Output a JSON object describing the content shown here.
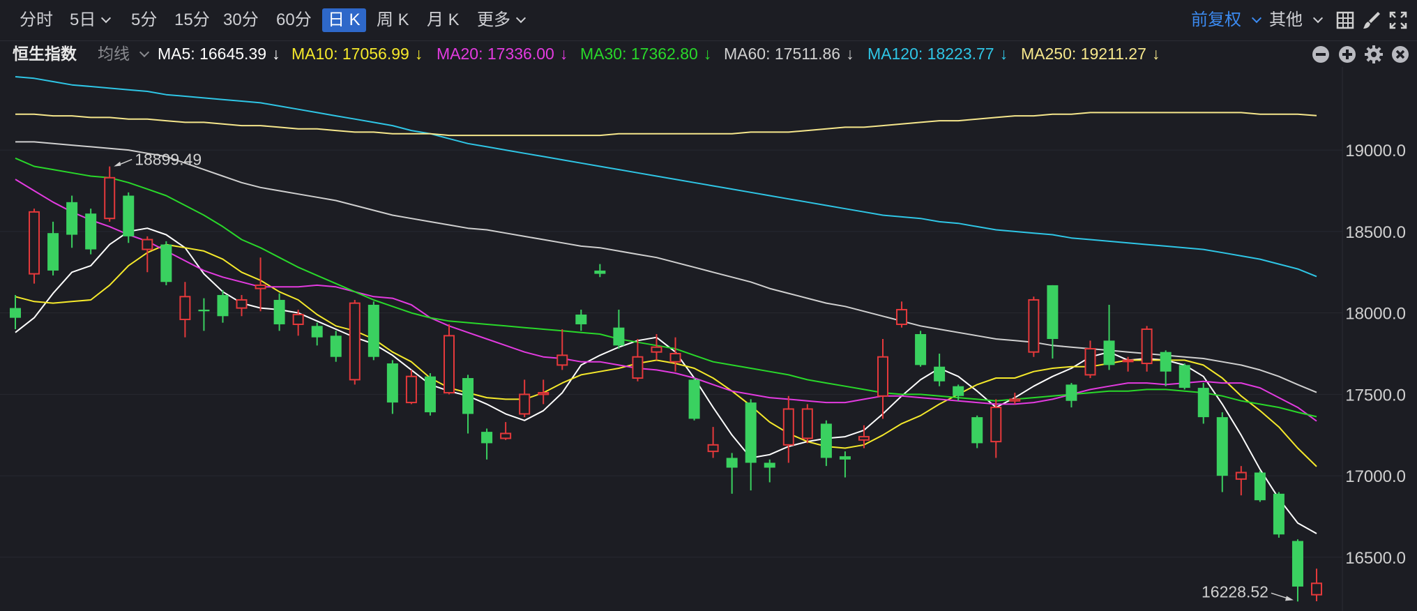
{
  "toolbar": {
    "tabs": [
      {
        "label": "分时",
        "active": false,
        "dropdown": false
      },
      {
        "label": "5日",
        "active": false,
        "dropdown": true
      },
      {
        "label": "5分",
        "active": false,
        "dropdown": false
      },
      {
        "label": "15分",
        "active": false,
        "dropdown": false
      },
      {
        "label": "30分",
        "active": false,
        "dropdown": false
      },
      {
        "label": "60分",
        "active": false,
        "dropdown": false
      },
      {
        "label": "日 K",
        "active": true,
        "dropdown": false
      },
      {
        "label": "周 K",
        "active": false,
        "dropdown": false
      },
      {
        "label": "月 K",
        "active": false,
        "dropdown": false
      },
      {
        "label": "更多",
        "active": false,
        "dropdown": true
      }
    ],
    "adjust_label": "前复权",
    "other_label": "其他",
    "icons": [
      "grid-icon",
      "brush-icon",
      "expand-icon"
    ]
  },
  "indicator_bar": {
    "symbol": "恒生指数",
    "mode_label": "均线",
    "ma": [
      {
        "label": "MA5: 16645.39",
        "color": "#ffffff",
        "arrow": "↓"
      },
      {
        "label": "MA10: 17056.99",
        "color": "#f5e92b",
        "arrow": "↓"
      },
      {
        "label": "MA20: 17336.00",
        "color": "#e33be0",
        "arrow": "↓"
      },
      {
        "label": "MA30: 17362.80",
        "color": "#29d82a",
        "arrow": "↓"
      },
      {
        "label": "MA60: 17511.86",
        "color": "#d0d0d0",
        "arrow": "↓"
      },
      {
        "label": "MA120: 18223.77",
        "color": "#2fc6e6",
        "arrow": "↓"
      },
      {
        "label": "MA250: 19211.27",
        "color": "#f6e78c",
        "arrow": "↓"
      }
    ],
    "controls": [
      "minus-circle-icon",
      "plus-circle-icon",
      "gear-icon",
      "close-circle-icon"
    ]
  },
  "chart_data": {
    "type": "candlestick",
    "y_ticks": [
      "19000.0",
      "18500.0",
      "18000.0",
      "17500.0",
      "17000.0",
      "16500.0"
    ],
    "y_tick_values": [
      19000,
      18500,
      18000,
      17500,
      17000,
      16500
    ],
    "ylim": [
      16170,
      19510
    ],
    "high_label": "18899.49",
    "low_label": "16228.52",
    "up_color": "#e5393b",
    "down_color": "#3ad160",
    "candles": [
      [
        18030,
        17970,
        18110,
        17900
      ],
      [
        18240,
        18620,
        18640,
        18180
      ],
      [
        18490,
        18260,
        18560,
        18230
      ],
      [
        18680,
        18480,
        18720,
        18400
      ],
      [
        18610,
        18390,
        18640,
        18360
      ],
      [
        18580,
        18830,
        18899.49,
        18560
      ],
      [
        18720,
        18470,
        18740,
        18430
      ],
      [
        18390,
        18450,
        18470,
        18250
      ],
      [
        18420,
        18190,
        18440,
        18170
      ],
      [
        17960,
        18100,
        18190,
        17850
      ],
      [
        18020,
        18010,
        18090,
        17890
      ],
      [
        18110,
        17980,
        18140,
        17940
      ],
      [
        18030,
        18080,
        18110,
        17980
      ],
      [
        18150,
        18170,
        18340,
        18010
      ],
      [
        18080,
        17930,
        18120,
        17890
      ],
      [
        17930,
        17990,
        18020,
        17860
      ],
      [
        17920,
        17850,
        17940,
        17800
      ],
      [
        17860,
        17730,
        17890,
        17700
      ],
      [
        17590,
        18060,
        18080,
        17560
      ],
      [
        18050,
        17730,
        18070,
        17710
      ],
      [
        17690,
        17450,
        17710,
        17380
      ],
      [
        17450,
        17610,
        17650,
        17440
      ],
      [
        17610,
        17390,
        17630,
        17370
      ],
      [
        17510,
        17860,
        17930,
        17500
      ],
      [
        17600,
        17380,
        17620,
        17260
      ],
      [
        17270,
        17200,
        17290,
        17100
      ],
      [
        17230,
        17260,
        17330,
        17220
      ],
      [
        17380,
        17500,
        17590,
        17360
      ],
      [
        17500,
        17510,
        17590,
        17440
      ],
      [
        17680,
        17740,
        17900,
        17650
      ],
      [
        17990,
        17930,
        18020,
        17890
      ],
      [
        18260,
        18240,
        18300,
        18220
      ],
      [
        17910,
        17800,
        18020,
        17780
      ],
      [
        17600,
        17730,
        17840,
        17580
      ],
      [
        17760,
        17790,
        17870,
        17710
      ],
      [
        17700,
        17750,
        17850,
        17640
      ],
      [
        17590,
        17350,
        17600,
        17340
      ],
      [
        17150,
        17190,
        17300,
        17110
      ],
      [
        17110,
        17050,
        17140,
        16890
      ],
      [
        17450,
        17080,
        17470,
        16910
      ],
      [
        17080,
        17050,
        17100,
        16960
      ],
      [
        17190,
        17410,
        17490,
        17080
      ],
      [
        17230,
        17410,
        17440,
        17200
      ],
      [
        17320,
        17110,
        17340,
        17060
      ],
      [
        17120,
        17100,
        17150,
        16990
      ],
      [
        17220,
        17240,
        17310,
        17170
      ],
      [
        17490,
        17730,
        17840,
        17350
      ],
      [
        17930,
        18020,
        18070,
        17910
      ],
      [
        17870,
        17680,
        17890,
        17670
      ],
      [
        17670,
        17580,
        17750,
        17550
      ],
      [
        17550,
        17490,
        17560,
        17460
      ],
      [
        17360,
        17200,
        17370,
        17170
      ],
      [
        17210,
        17420,
        17470,
        17110
      ],
      [
        17460,
        17470,
        17510,
        17440
      ],
      [
        17760,
        18080,
        18100,
        17730
      ],
      [
        18170,
        17840,
        18170,
        17720
      ],
      [
        17560,
        17460,
        17570,
        17420
      ],
      [
        17620,
        17780,
        17830,
        17600
      ],
      [
        17830,
        17680,
        18050,
        17650
      ],
      [
        17710,
        17710,
        17730,
        17640
      ],
      [
        17690,
        17900,
        17920,
        17640
      ],
      [
        17760,
        17640,
        17770,
        17550
      ],
      [
        17680,
        17540,
        17690,
        17530
      ],
      [
        17540,
        17360,
        17570,
        17320
      ],
      [
        17360,
        17000,
        17390,
        16900
      ],
      [
        16980,
        17020,
        17060,
        16880
      ],
      [
        17020,
        16850,
        17030,
        16840
      ],
      [
        16890,
        16640,
        16900,
        16620
      ],
      [
        16600,
        16320,
        16610,
        16228.52
      ],
      [
        16270,
        16340,
        16430,
        16230
      ]
    ],
    "ma_series": {
      "MA5": [
        17880,
        17970,
        18120,
        18250,
        18290,
        18420,
        18500,
        18520,
        18480,
        18400,
        18240,
        18130,
        18060,
        18030,
        18020,
        18000,
        17950,
        17900,
        17850,
        17810,
        17740,
        17650,
        17560,
        17520,
        17490,
        17440,
        17380,
        17340,
        17400,
        17510,
        17680,
        17740,
        17790,
        17830,
        17850,
        17760,
        17600,
        17420,
        17250,
        17110,
        17130,
        17180,
        17210,
        17230,
        17240,
        17280,
        17380,
        17490,
        17590,
        17660,
        17610,
        17520,
        17420,
        17480,
        17550,
        17610,
        17660,
        17730,
        17760,
        17710,
        17720,
        17710,
        17680,
        17610,
        17440,
        17250,
        17040,
        16860,
        16710,
        16645.39
      ],
      "MA10": [
        18100,
        18070,
        18060,
        18070,
        18080,
        18170,
        18290,
        18370,
        18420,
        18400,
        18380,
        18330,
        18250,
        18200,
        18130,
        18080,
        17990,
        17920,
        17890,
        17840,
        17760,
        17700,
        17600,
        17540,
        17510,
        17480,
        17470,
        17470,
        17510,
        17570,
        17620,
        17640,
        17660,
        17690,
        17710,
        17690,
        17660,
        17600,
        17520,
        17430,
        17330,
        17260,
        17210,
        17180,
        17170,
        17190,
        17250,
        17320,
        17370,
        17440,
        17500,
        17560,
        17600,
        17600,
        17640,
        17660,
        17670,
        17670,
        17690,
        17710,
        17710,
        17710,
        17710,
        17680,
        17600,
        17490,
        17400,
        17300,
        17170,
        17056.99
      ],
      "MA20": [
        18820,
        18750,
        18680,
        18620,
        18570,
        18530,
        18480,
        18440,
        18380,
        18320,
        18260,
        18220,
        18190,
        18160,
        18160,
        18160,
        18170,
        18160,
        18130,
        18100,
        18090,
        18050,
        17970,
        17920,
        17880,
        17840,
        17800,
        17760,
        17730,
        17720,
        17700,
        17700,
        17680,
        17660,
        17650,
        17630,
        17600,
        17560,
        17520,
        17500,
        17480,
        17470,
        17460,
        17450,
        17450,
        17470,
        17490,
        17490,
        17480,
        17470,
        17460,
        17450,
        17440,
        17440,
        17450,
        17470,
        17500,
        17530,
        17550,
        17570,
        17570,
        17560,
        17570,
        17580,
        17570,
        17570,
        17540,
        17480,
        17420,
        17336.0
      ],
      "MA30": [
        18950,
        18900,
        18880,
        18860,
        18840,
        18830,
        18800,
        18760,
        18720,
        18660,
        18600,
        18530,
        18450,
        18400,
        18340,
        18280,
        18230,
        18180,
        18130,
        18080,
        18040,
        18000,
        17970,
        17950,
        17940,
        17930,
        17920,
        17910,
        17900,
        17890,
        17880,
        17870,
        17840,
        17820,
        17800,
        17780,
        17740,
        17700,
        17680,
        17660,
        17640,
        17620,
        17590,
        17570,
        17550,
        17530,
        17510,
        17500,
        17500,
        17490,
        17480,
        17470,
        17460,
        17470,
        17480,
        17490,
        17500,
        17510,
        17520,
        17520,
        17530,
        17530,
        17520,
        17510,
        17490,
        17460,
        17440,
        17420,
        17390,
        17362.8
      ],
      "MA60": [
        19050,
        19050,
        19040,
        19030,
        19020,
        19010,
        19000,
        18980,
        18960,
        18920,
        18880,
        18840,
        18800,
        18770,
        18750,
        18730,
        18710,
        18690,
        18660,
        18630,
        18600,
        18580,
        18560,
        18540,
        18520,
        18510,
        18490,
        18470,
        18450,
        18430,
        18410,
        18400,
        18380,
        18360,
        18340,
        18310,
        18280,
        18250,
        18220,
        18190,
        18150,
        18120,
        18090,
        18060,
        18040,
        18010,
        17980,
        17950,
        17920,
        17900,
        17880,
        17860,
        17840,
        17830,
        17820,
        17800,
        17790,
        17780,
        17770,
        17760,
        17750,
        17740,
        17730,
        17720,
        17700,
        17680,
        17650,
        17610,
        17560,
        17511.86
      ],
      "MA120": [
        19450,
        19440,
        19420,
        19400,
        19390,
        19380,
        19370,
        19360,
        19340,
        19330,
        19320,
        19310,
        19300,
        19290,
        19270,
        19250,
        19230,
        19210,
        19190,
        19170,
        19150,
        19120,
        19100,
        19070,
        19040,
        19020,
        19000,
        18980,
        18960,
        18940,
        18920,
        18900,
        18880,
        18860,
        18840,
        18820,
        18800,
        18780,
        18760,
        18740,
        18720,
        18700,
        18680,
        18660,
        18640,
        18620,
        18600,
        18590,
        18580,
        18560,
        18550,
        18530,
        18510,
        18500,
        18490,
        18480,
        18460,
        18450,
        18440,
        18430,
        18420,
        18410,
        18400,
        18390,
        18370,
        18350,
        18330,
        18300,
        18270,
        18223.77
      ],
      "MA250": [
        19220,
        19220,
        19210,
        19210,
        19200,
        19200,
        19190,
        19190,
        19180,
        19170,
        19170,
        19160,
        19150,
        19150,
        19140,
        19130,
        19130,
        19120,
        19110,
        19110,
        19100,
        19100,
        19100,
        19090,
        19090,
        19090,
        19090,
        19090,
        19090,
        19090,
        19090,
        19090,
        19100,
        19100,
        19100,
        19100,
        19100,
        19100,
        19100,
        19110,
        19110,
        19110,
        19120,
        19130,
        19140,
        19140,
        19150,
        19160,
        19170,
        19180,
        19180,
        19190,
        19200,
        19210,
        19210,
        19220,
        19220,
        19230,
        19230,
        19230,
        19230,
        19230,
        19230,
        19230,
        19230,
        19230,
        19220,
        19220,
        19220,
        19211.27
      ]
    }
  }
}
